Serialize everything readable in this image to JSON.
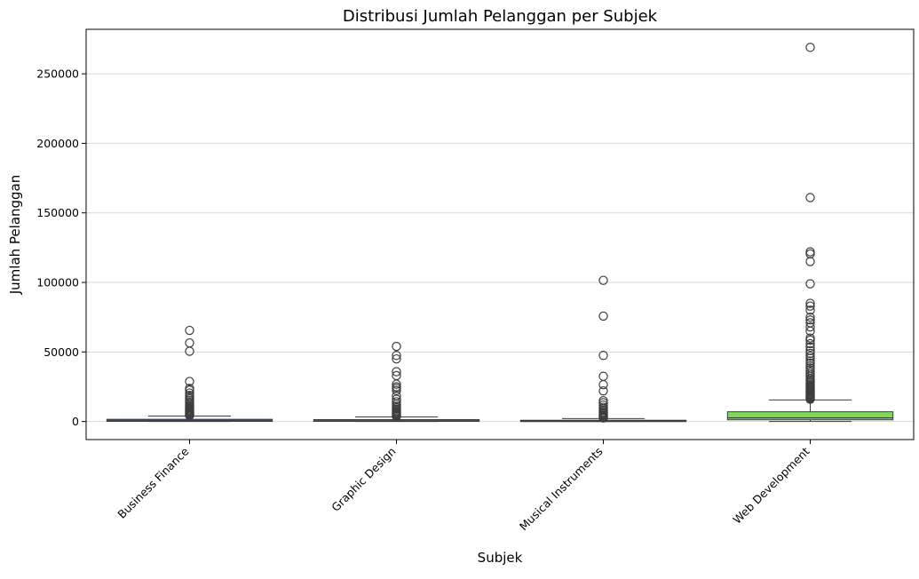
{
  "chart_data": {
    "type": "boxplot",
    "title": "Distribusi Jumlah Pelanggan per Subjek",
    "xlabel": "Subjek",
    "ylabel": "Jumlah Pelanggan",
    "ylim": [
      -13000,
      282000
    ],
    "yticks": [
      0,
      50000,
      100000,
      150000,
      200000,
      250000
    ],
    "ytick_labels": [
      "0",
      "50000",
      "100000",
      "150000",
      "200000",
      "250000"
    ],
    "grid": "horizontal",
    "categories": [
      "Business Finance",
      "Graphic Design",
      "Musical Instruments",
      "Web Development"
    ],
    "colors": {
      "Business Finance": "#3a5a8c",
      "Graphic Design": "#2a8a82",
      "Musical Instruments": "#3a6b56",
      "Web Development": "#7ed957",
      "box_edge": "#3d3d3d",
      "grid": "#d9d9d9"
    },
    "series": [
      {
        "name": "Business Finance",
        "q1": 100,
        "median": 500,
        "q3": 1600,
        "whisker_low": 0,
        "whisker_high": 3900,
        "outliers": [
          65500,
          56500,
          50500,
          28800,
          23800,
          22500,
          20500,
          18800,
          17500,
          16200,
          15000,
          13800,
          12800,
          11700,
          10800,
          10000,
          9200,
          8500,
          7800,
          7200,
          6600,
          6000,
          5500,
          5000,
          4600,
          4300
        ]
      },
      {
        "name": "Graphic Design",
        "q1": 80,
        "median": 450,
        "q3": 1400,
        "whisker_low": 0,
        "whisker_high": 3300,
        "outliers": [
          54000,
          47500,
          45000,
          35800,
          33000,
          26800,
          25000,
          23800,
          22300,
          18500,
          16000,
          14200,
          12500,
          11000,
          9800,
          8800,
          7800,
          7000,
          6200,
          5500,
          4800,
          4200,
          3700
        ]
      },
      {
        "name": "Musical Instruments",
        "q1": 100,
        "median": 400,
        "q3": 900,
        "whisker_low": 0,
        "whisker_high": 2100,
        "outliers": [
          101500,
          75800,
          47500,
          32500,
          26500,
          22000,
          15000,
          13500,
          11800,
          10200,
          9000,
          8000,
          7000,
          6200,
          5400,
          4700,
          4000,
          3400,
          2900,
          2500
        ]
      },
      {
        "name": "Web Development",
        "q1": 1200,
        "median": 2600,
        "q3": 7000,
        "whisker_low": 0,
        "whisker_high": 15500,
        "outliers": [
          269000,
          161000,
          122000,
          120500,
          115000,
          99000,
          85000,
          83000,
          80000,
          75000,
          73000,
          71000,
          68000,
          65000,
          60000,
          58500,
          56000,
          53500,
          51000,
          49000,
          47000,
          45500,
          43500,
          42000,
          40000,
          38500,
          37000,
          35500,
          34000,
          32500,
          31000,
          30000,
          29000,
          28000,
          27000,
          26000,
          25000,
          24200,
          23400,
          22600,
          21800,
          21000,
          20300,
          19600,
          18900,
          18200,
          17600,
          17000,
          16500,
          16000
        ]
      }
    ]
  }
}
